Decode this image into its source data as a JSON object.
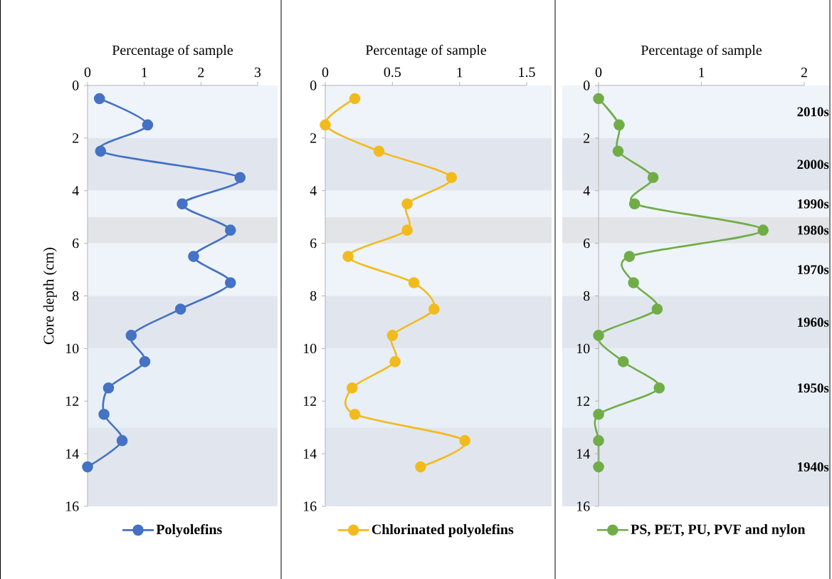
{
  "chart_data": [
    {
      "type": "line",
      "xlabel": "Percentage of sample",
      "ylabel": "Core depth (cm)",
      "xlim": [
        0,
        3
      ],
      "xticks": [
        0,
        1,
        2,
        3
      ],
      "ylim": [
        16,
        0
      ],
      "yticks": [
        0,
        2,
        4,
        6,
        8,
        10,
        12,
        14,
        16
      ],
      "marker": "circle",
      "line_style": "solid",
      "legend": "bottom",
      "grid": false,
      "series": [
        {
          "name": "Polyolefins",
          "color": "#4472c4",
          "x": [
            0.21,
            1.06,
            0.23,
            2.69,
            1.67,
            2.52,
            1.87,
            2.52,
            1.64,
            0.77,
            1.01,
            0.37,
            0.29,
            0.61,
            0
          ],
          "values": [
            0.5,
            1.5,
            2.5,
            3.5,
            4.5,
            5.5,
            6.5,
            7.5,
            8.5,
            9.5,
            10.5,
            11.5,
            12.5,
            13.5,
            14.5
          ]
        }
      ],
      "bands": [
        {
          "axis": "y",
          "from": 0,
          "to": 2,
          "color": "#eff4fa"
        },
        {
          "axis": "y",
          "from": 2,
          "to": 4,
          "color": "#e1e6ee"
        },
        {
          "axis": "y",
          "from": 4,
          "to": 5,
          "color": "#eff4fa"
        },
        {
          "axis": "y",
          "from": 5,
          "to": 6,
          "color": "#e2e4e8"
        },
        {
          "axis": "y",
          "from": 6,
          "to": 8,
          "color": "#eff4fa"
        },
        {
          "axis": "y",
          "from": 8,
          "to": 10,
          "color": "#e1e6ee"
        },
        {
          "axis": "y",
          "from": 10,
          "to": 13,
          "color": "#e8eff7"
        },
        {
          "axis": "y",
          "from": 13,
          "to": 16,
          "color": "#e1e6ee"
        }
      ]
    },
    {
      "type": "line",
      "xlabel": "Percentage of sample",
      "xlim": [
        0,
        1.5
      ],
      "xticks": [
        0,
        0.5,
        1,
        1.5
      ],
      "ylim": [
        16,
        0
      ],
      "yticks": [
        0,
        2,
        4,
        6,
        8,
        10,
        12,
        14,
        16
      ],
      "marker": "circle",
      "line_style": "solid",
      "legend": "bottom",
      "grid": false,
      "series": [
        {
          "name": "Chlorinated polyolefins",
          "color": "#f2bb1d",
          "x": [
            0.22,
            0,
            0.4,
            0.94,
            0.61,
            0.61,
            0.17,
            0.66,
            0.81,
            0.5,
            0.52,
            0.2,
            0.22,
            1.04,
            0.71
          ],
          "values": [
            0.5,
            1.5,
            2.5,
            3.5,
            4.5,
            5.5,
            6.5,
            7.5,
            8.5,
            9.5,
            10.5,
            11.5,
            12.5,
            13.5,
            14.5
          ]
        }
      ],
      "bands": [
        {
          "axis": "y",
          "from": 0,
          "to": 2,
          "color": "#eff4fa"
        },
        {
          "axis": "y",
          "from": 2,
          "to": 4,
          "color": "#e1e6ee"
        },
        {
          "axis": "y",
          "from": 4,
          "to": 5,
          "color": "#eff4fa"
        },
        {
          "axis": "y",
          "from": 5,
          "to": 6,
          "color": "#e2e4e8"
        },
        {
          "axis": "y",
          "from": 6,
          "to": 8,
          "color": "#eff4fa"
        },
        {
          "axis": "y",
          "from": 8,
          "to": 10,
          "color": "#e1e6ee"
        },
        {
          "axis": "y",
          "from": 10,
          "to": 13,
          "color": "#e8eff7"
        },
        {
          "axis": "y",
          "from": 13,
          "to": 16,
          "color": "#e1e6ee"
        }
      ]
    },
    {
      "type": "line",
      "xlabel": "Percentage of sample",
      "xlim": [
        0,
        2
      ],
      "xticks": [
        0,
        1,
        2
      ],
      "ylim": [
        16,
        0
      ],
      "yticks": [
        0,
        2,
        4,
        6,
        8,
        10,
        12,
        14,
        16
      ],
      "marker": "circle",
      "line_style": "solid",
      "legend": "bottom",
      "grid": false,
      "series": [
        {
          "name": "PS, PET, PU, PVF and nylon",
          "color": "#70ad47",
          "x": [
            0,
            0.2,
            0.19,
            0.53,
            0.35,
            1.6,
            0.3,
            0.34,
            0.57,
            0,
            0.24,
            0.59,
            0,
            0,
            0
          ],
          "values": [
            0.5,
            1.5,
            2.5,
            3.5,
            4.5,
            5.5,
            6.5,
            7.5,
            8.5,
            9.5,
            10.5,
            11.5,
            12.5,
            13.5,
            14.5
          ]
        }
      ],
      "bands": [
        {
          "axis": "y",
          "from": 0,
          "to": 2,
          "color": "#eff4fa",
          "label": "2010s"
        },
        {
          "axis": "y",
          "from": 2,
          "to": 4,
          "color": "#e1e6ee",
          "label": "2000s"
        },
        {
          "axis": "y",
          "from": 4,
          "to": 5,
          "color": "#eff4fa",
          "label": "1990s"
        },
        {
          "axis": "y",
          "from": 5,
          "to": 6,
          "color": "#e2e4e8",
          "label": "1980s"
        },
        {
          "axis": "y",
          "from": 6,
          "to": 8,
          "color": "#eff4fa",
          "label": "1970s"
        },
        {
          "axis": "y",
          "from": 8,
          "to": 10,
          "color": "#e1e6ee",
          "label": "1960s"
        },
        {
          "axis": "y",
          "from": 10,
          "to": 13,
          "color": "#e8eff7",
          "label": "1950s"
        },
        {
          "axis": "y",
          "from": 13,
          "to": 16,
          "color": "#e1e6ee",
          "label": "1940s"
        }
      ]
    }
  ]
}
